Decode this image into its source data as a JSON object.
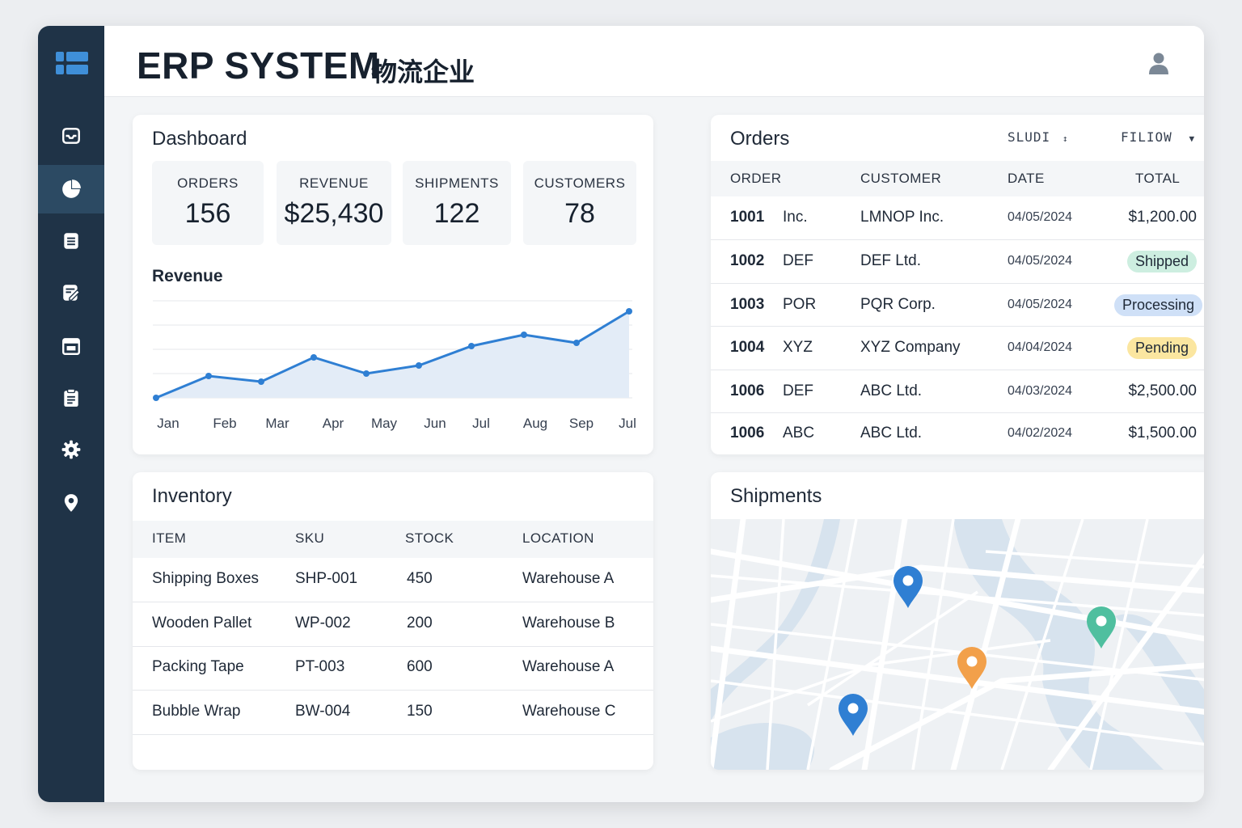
{
  "app": {
    "title": "ERP SYSTEM",
    "subtitle": "物流企业"
  },
  "colors": {
    "sidebar": "#1f3347",
    "accent": "#2f7fd3",
    "shipped": "#cdeee0",
    "processing": "#cfe0f7",
    "pending": "#fbe6a0"
  },
  "sidebar": {
    "items": [
      {
        "icon": "inbox-icon"
      },
      {
        "icon": "pie-chart-icon",
        "active": true
      },
      {
        "icon": "document-icon"
      },
      {
        "icon": "edit-document-icon"
      },
      {
        "icon": "calendar-icon"
      },
      {
        "icon": "clipboard-icon"
      },
      {
        "icon": "gear-icon"
      },
      {
        "icon": "location-pin-icon"
      }
    ]
  },
  "dashboard": {
    "title": "Dashboard",
    "kpis": [
      {
        "label": "ORDERS",
        "value": "156"
      },
      {
        "label": "REVENUE",
        "value": "$25,430"
      },
      {
        "label": "SHIPMENTS",
        "value": "122"
      },
      {
        "label": "CUSTOMERS",
        "value": "78"
      }
    ],
    "revenue_title": "Revenue"
  },
  "chart_data": {
    "type": "area",
    "title": "Revenue",
    "categories": [
      "Jan",
      "Feb",
      "Mar",
      "Apr",
      "May",
      "Jun",
      "Jul",
      "Aug",
      "Sep",
      "Jul"
    ],
    "values": [
      0,
      27,
      20,
      50,
      30,
      40,
      64,
      78,
      68,
      107
    ],
    "ylim": [
      0,
      120
    ],
    "grid": true,
    "xlabel": "",
    "ylabel": ""
  },
  "orders": {
    "title": "Orders",
    "sort_label": "SLUDI",
    "filter_label": "FILIOW",
    "headers": [
      "ORDER",
      "CUSTOMER",
      "DATE",
      "TOTAL"
    ],
    "rows": [
      {
        "id": "1001",
        "code": "Inc.",
        "customer": "LMNOP Inc.",
        "date": "04/05/2024",
        "total": "$1,200.00",
        "status": ""
      },
      {
        "id": "1002",
        "code": "DEF",
        "customer": "DEF Ltd.",
        "date": "04/05/2024",
        "total": "Shipped",
        "status": "shipped"
      },
      {
        "id": "1003",
        "code": "POR",
        "customer": "PQR Corp.",
        "date": "04/05/2024",
        "total": "Processing",
        "status": "processing"
      },
      {
        "id": "1004",
        "code": "XYZ",
        "customer": "XYZ Company",
        "date": "04/04/2024",
        "total": "Pending",
        "status": "pending"
      },
      {
        "id": "1006",
        "code": "DEF",
        "customer": "ABC Ltd.",
        "date": "04/03/2024",
        "total": "$2,500.00",
        "status": ""
      },
      {
        "id": "1006",
        "code": "ABC",
        "customer": "ABC Ltd.",
        "date": "04/02/2024",
        "total": "$1,500.00",
        "status": ""
      }
    ]
  },
  "inventory": {
    "title": "Inventory",
    "headers": [
      "ITEM",
      "SKU",
      "STOCK",
      "LOCATION"
    ],
    "rows": [
      {
        "item": "Shipping Boxes",
        "sku": "SHP-001",
        "stock": "450",
        "location": "Warehouse A"
      },
      {
        "item": "Wooden Pallet",
        "sku": "WP-002",
        "stock": "200",
        "location": "Warehouse B"
      },
      {
        "item": "Packing Tape",
        "sku": "PT-003",
        "stock": "600",
        "location": "Warehouse A"
      },
      {
        "item": "Bubble Wrap",
        "sku": "BW-004",
        "stock": "150",
        "location": "Warehouse C"
      }
    ]
  },
  "shipments": {
    "title": "Shipments",
    "pins": [
      {
        "color": "#2f7fd3"
      },
      {
        "color": "#4fbf9f"
      },
      {
        "color": "#f2a04a"
      },
      {
        "color": "#2f7fd3"
      }
    ]
  }
}
